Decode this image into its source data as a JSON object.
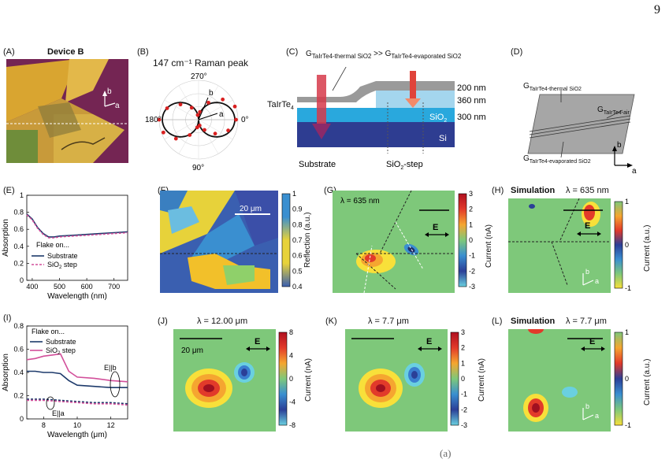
{
  "page_number": "9",
  "footer_mark": "(a)",
  "panels": {
    "A": {
      "label": "(A)",
      "title": "Device B",
      "axis_b": "b",
      "axis_a": "a"
    },
    "B": {
      "label": "(B)",
      "title": "147 cm⁻¹ Raman peak",
      "angles": [
        "270°",
        "180°",
        "0°",
        "90°"
      ],
      "axis_b": "b",
      "axis_a": "a",
      "chart_data": {
        "type": "scatter",
        "r_points": [
          0.95,
          0.8,
          0.55,
          0.3,
          0.15,
          0.2,
          0.45,
          0.75,
          0.95,
          1.0,
          0.85,
          0.6,
          0.35,
          0.12,
          0.2,
          0.5,
          0.8,
          0.98
        ],
        "theta_deg": [
          0,
          20,
          40,
          60,
          80,
          100,
          120,
          140,
          160,
          180,
          200,
          220,
          240,
          260,
          280,
          300,
          320,
          340
        ]
      }
    },
    "C": {
      "label": "(C)",
      "g_thermal_prefix": "G",
      "g_thermal_sub": "TaIrTe4-thermal SiO2",
      "relation": ">>",
      "g_evap_prefix": "G",
      "g_evap_sub": "TaIrTe4-evaporated SiO2",
      "material": "TaIrTe",
      "material_sub": "4",
      "t200": "200 nm",
      "t360": "360 nm",
      "t300": "300 nm",
      "sio2": "SiO",
      "sio2_sub": "2",
      "si": "Si",
      "substrate": "Substrate",
      "step": "SiO",
      "step_sub": "2",
      "step_suffix": "-step"
    },
    "D": {
      "label": "(D)",
      "g1": "G",
      "g1_sub": "TaIrTe4-thermal SiO2",
      "g2": "G",
      "g2_sub": "TaIrTe4-air",
      "g3": "G",
      "g3_sub": "TaIrTe4-evaporated SiO2",
      "axis_b": "b",
      "axis_a": "a"
    },
    "E": {
      "label": "(E)",
      "ylabel": "Absorption",
      "xlabel": "Wavelength (nm)",
      "legend_title": "Flake on...",
      "legend": [
        "Substrate",
        "SiO",
        "step"
      ],
      "legend_sub": "2",
      "chart_data": {
        "type": "line",
        "xlim": [
          380,
          750
        ],
        "ylim": [
          0,
          1
        ],
        "xticks": [
          "400",
          "500",
          "600",
          "700"
        ],
        "yticks": [
          "0",
          "0.2",
          "0.4",
          "0.6",
          "0.8",
          "1"
        ],
        "series": [
          {
            "name": "Substrate",
            "x": [
              380,
              400,
              420,
              440,
              460,
              480,
              500,
              550,
              600,
              650,
              700,
              750
            ],
            "y": [
              0.78,
              0.72,
              0.62,
              0.55,
              0.51,
              0.51,
              0.52,
              0.53,
              0.54,
              0.55,
              0.56,
              0.57
            ]
          },
          {
            "name": "SiO2 step",
            "x": [
              380,
              400,
              420,
              440,
              460,
              480,
              500,
              550,
              600,
              650,
              700,
              750
            ],
            "y": [
              0.77,
              0.71,
              0.61,
              0.54,
              0.5,
              0.5,
              0.51,
              0.52,
              0.53,
              0.54,
              0.55,
              0.56
            ]
          }
        ]
      }
    },
    "F": {
      "label": "(F)",
      "scale": "20 μm",
      "cbar_label": "Reflection (a.u.)",
      "cbar_ticks": [
        "1",
        "0.9",
        "0.8",
        "0.7",
        "0.6",
        "0.5",
        "0.4"
      ]
    },
    "G": {
      "label": "(G)",
      "lambda": "λ = 635 nm",
      "e": "E",
      "cbar_label": "Current (nA)",
      "cbar_ticks": [
        "3",
        "2",
        "1",
        "0",
        "-1",
        "-2",
        "-3"
      ]
    },
    "H": {
      "label": "(H)",
      "sim": "Simulation",
      "lambda": "λ = 635 nm",
      "e": "E",
      "cbar_label": "Current (a.u.)",
      "cbar_ticks": [
        "1",
        "0",
        "-1"
      ],
      "axis_b": "b",
      "axis_a": "a"
    },
    "I": {
      "label": "(I)",
      "ylabel": "Absorption",
      "xlabel": "Wavelength (μm)",
      "legend_title": "Flake on...",
      "legend": [
        "Substrate",
        "SiO",
        "step"
      ],
      "legend_sub": "2",
      "eb": "E||b",
      "ea": "E||a",
      "chart_data": {
        "type": "line",
        "xlim": [
          7,
          13
        ],
        "ylim": [
          0,
          0.8
        ],
        "xticks": [
          "8",
          "10",
          "12"
        ],
        "yticks": [
          "0",
          "0.2",
          "0.4",
          "0.6",
          "0.8"
        ],
        "series": [
          {
            "name": "Substrate E||b",
            "x": [
              7,
              7.5,
              8,
              8.5,
              9,
              9.5,
              10,
              11,
              12,
              13
            ],
            "y": [
              0.41,
              0.41,
              0.4,
              0.4,
              0.39,
              0.33,
              0.29,
              0.28,
              0.27,
              0.27
            ]
          },
          {
            "name": "SiO2 step E||b",
            "x": [
              7,
              7.5,
              8,
              8.5,
              9,
              9.5,
              10,
              11,
              12,
              13
            ],
            "y": [
              0.51,
              0.52,
              0.54,
              0.55,
              0.56,
              0.41,
              0.36,
              0.35,
              0.33,
              0.32
            ]
          },
          {
            "name": "Substrate E||a",
            "x": [
              7,
              8,
              9,
              10,
              11,
              12,
              13
            ],
            "y": [
              0.17,
              0.17,
              0.16,
              0.15,
              0.14,
              0.14,
              0.13
            ]
          },
          {
            "name": "SiO2 step E||a",
            "x": [
              7,
              8,
              9,
              10,
              11,
              12,
              13
            ],
            "y": [
              0.16,
              0.16,
              0.15,
              0.14,
              0.13,
              0.13,
              0.12
            ]
          }
        ]
      }
    },
    "J": {
      "label": "(J)",
      "lambda": "λ = 12.00 μm",
      "scale": "20 μm",
      "e": "E",
      "cbar_label": "Current (nA)",
      "cbar_ticks": [
        "8",
        "4",
        "0",
        "-4",
        "-8"
      ]
    },
    "K": {
      "label": "(K)",
      "lambda": "λ = 7.7 μm",
      "e": "E",
      "cbar_label": "Current (nA)",
      "cbar_ticks": [
        "3",
        "2",
        "1",
        "0",
        "-1",
        "-2",
        "-3"
      ]
    },
    "L": {
      "label": "(L)",
      "sim": "Simulation",
      "lambda": "λ = 7.7 μm",
      "e": "E",
      "cbar_label": "Current (a.u.)",
      "cbar_ticks": [
        "1",
        "0",
        "-1"
      ],
      "axis_b": "b",
      "axis_a": "a"
    }
  },
  "colors": {
    "navy": "#1d3a6b",
    "pink": "#d24f9a",
    "green_bg": "#7fc97f",
    "dark_blue": "#2b3f97"
  }
}
